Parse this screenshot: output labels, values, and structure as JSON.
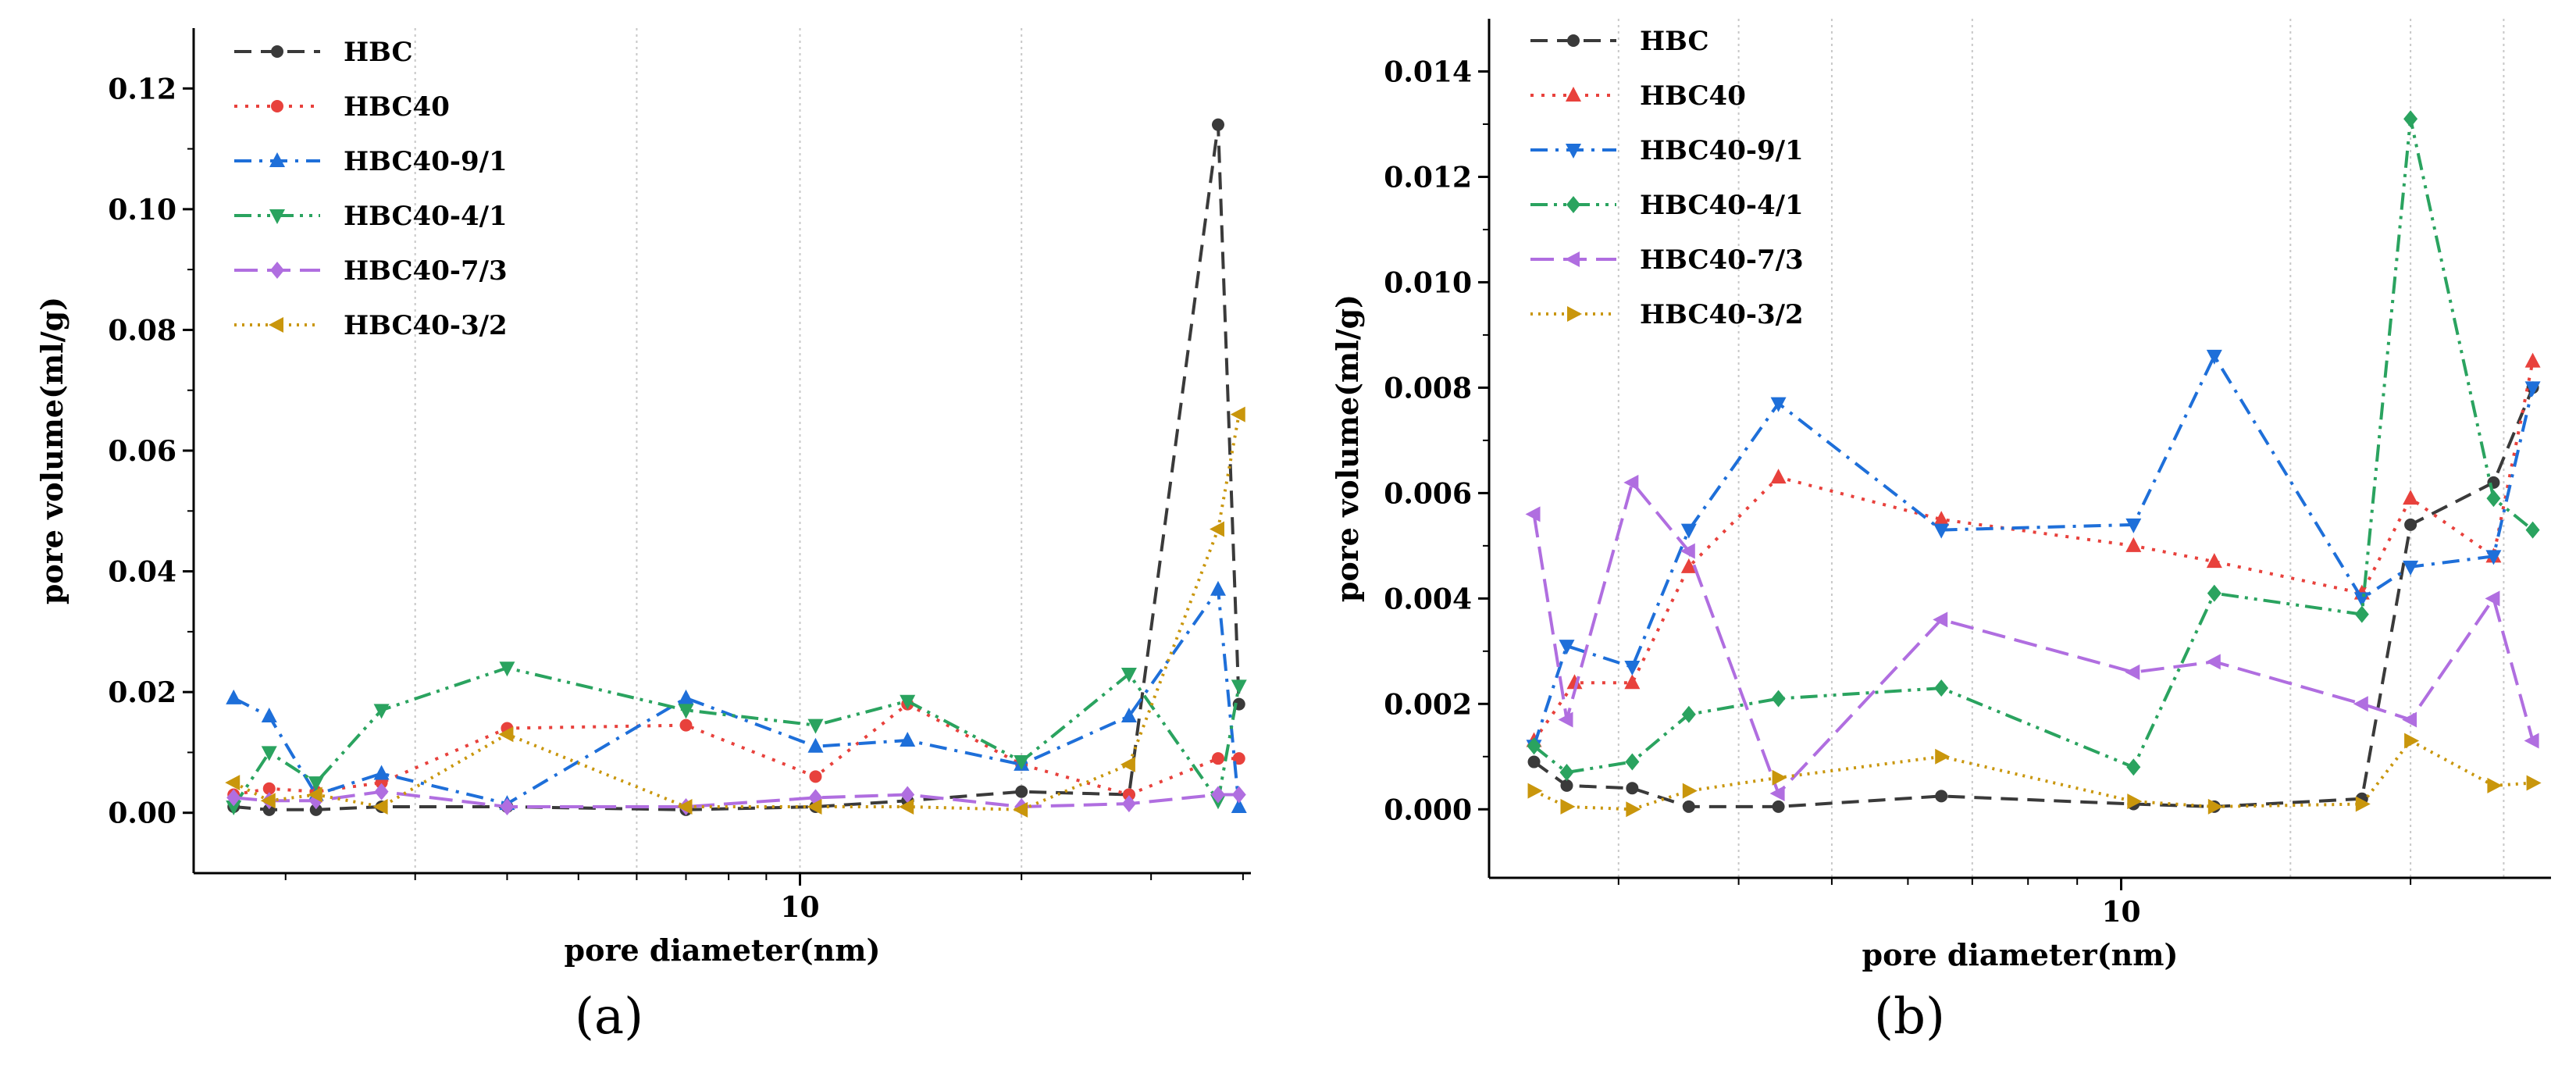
{
  "figure": {
    "panels": [
      "(a)",
      "(b)"
    ]
  },
  "colors": {
    "HBC": "#3a3a3a",
    "HBC40": "#e8413c",
    "HBC40-9/1": "#1e6fd9",
    "HBC40-4/1": "#2aa35f",
    "HBC40-7/3": "#b06ee0",
    "HBC40-3/2": "#c9960c"
  },
  "chart_data": [
    {
      "type": "line",
      "panel": "(a)",
      "xlabel": "pore diameter(nm)",
      "ylabel": "pore volume(ml/g)",
      "xscale": "log",
      "xlim": [
        1.5,
        41
      ],
      "ylim": [
        -0.01,
        0.13
      ],
      "xticks": [
        {
          "value": 10,
          "label": "10"
        }
      ],
      "xgrid": [
        3,
        6,
        10,
        20
      ],
      "yticks": [
        0.0,
        0.02,
        0.04,
        0.06,
        0.08,
        0.1,
        0.12
      ],
      "ytick_labels": [
        "0.00",
        "0.02",
        "0.04",
        "0.06",
        "0.08",
        "0.10",
        "0.12"
      ],
      "legend": "top-left",
      "series": [
        {
          "name": "HBC",
          "marker": "circle",
          "dash": "dash",
          "x": [
            1.7,
            1.9,
            2.2,
            2.7,
            4.0,
            7.0,
            10.5,
            14.0,
            20.0,
            28.0,
            37.0,
            39.5
          ],
          "y": [
            0.001,
            0.0005,
            0.0005,
            0.001,
            0.001,
            0.0005,
            0.001,
            0.002,
            0.0035,
            0.003,
            0.114,
            0.018
          ]
        },
        {
          "name": "HBC40",
          "marker": "circle",
          "dash": "dot",
          "x": [
            1.7,
            1.9,
            2.2,
            2.7,
            4.0,
            7.0,
            10.5,
            14.0,
            20.0,
            28.0,
            37.0,
            39.5
          ],
          "y": [
            0.003,
            0.004,
            0.0035,
            0.005,
            0.014,
            0.0145,
            0.006,
            0.018,
            0.008,
            0.003,
            0.009,
            0.009
          ]
        },
        {
          "name": "HBC40-9/1",
          "marker": "triangle-up",
          "dash": "dashdot",
          "x": [
            1.7,
            1.9,
            2.2,
            2.7,
            4.0,
            7.0,
            10.5,
            14.0,
            20.0,
            28.0,
            37.0,
            39.5
          ],
          "y": [
            0.019,
            0.016,
            0.003,
            0.0065,
            0.0015,
            0.019,
            0.011,
            0.012,
            0.008,
            0.016,
            0.037,
            0.001
          ]
        },
        {
          "name": "HBC40-4/1",
          "marker": "triangle-down",
          "dash": "dashdotdot",
          "x": [
            1.7,
            1.9,
            2.2,
            2.7,
            4.0,
            7.0,
            10.5,
            14.0,
            20.0,
            28.0,
            37.0,
            39.5
          ],
          "y": [
            0.001,
            0.01,
            0.005,
            0.017,
            0.024,
            0.017,
            0.0145,
            0.0185,
            0.0085,
            0.023,
            0.002,
            0.021
          ]
        },
        {
          "name": "HBC40-7/3",
          "marker": "diamond",
          "dash": "longdash",
          "x": [
            1.7,
            1.9,
            2.2,
            2.7,
            4.0,
            7.0,
            10.5,
            14.0,
            20.0,
            28.0,
            37.0,
            39.5
          ],
          "y": [
            0.0025,
            0.002,
            0.002,
            0.0035,
            0.001,
            0.001,
            0.0025,
            0.003,
            0.001,
            0.0015,
            0.003,
            0.003
          ]
        },
        {
          "name": "HBC40-3/2",
          "marker": "triangle-left",
          "dash": "shortdot",
          "x": [
            1.7,
            1.9,
            2.2,
            2.7,
            4.0,
            7.0,
            10.5,
            14.0,
            20.0,
            28.0,
            37.0,
            39.5
          ],
          "y": [
            0.005,
            0.002,
            0.003,
            0.001,
            0.013,
            0.001,
            0.001,
            0.001,
            0.0005,
            0.008,
            0.047,
            0.066
          ]
        }
      ]
    },
    {
      "type": "line",
      "panel": "(b)",
      "xlabel": "pore diameter(nm)",
      "ylabel": "pore volume(ml/g)",
      "xscale": "log",
      "xlim": [
        2.2,
        28
      ],
      "ylim": [
        -0.0013,
        0.015
      ],
      "xticks": [
        {
          "value": 10,
          "label": "10"
        }
      ],
      "xgrid": [
        3,
        4,
        5,
        7,
        15,
        20,
        25
      ],
      "yticks": [
        0.0,
        0.002,
        0.004,
        0.006,
        0.008,
        0.01,
        0.012,
        0.014
      ],
      "ytick_labels": [
        "0.000",
        "0.002",
        "0.004",
        "0.006",
        "0.008",
        "0.010",
        "0.012",
        "0.014"
      ],
      "legend": "top-left",
      "series": [
        {
          "name": "HBC",
          "marker": "circle",
          "dash": "dash",
          "x": [
            2.45,
            2.65,
            3.1,
            3.55,
            4.4,
            6.5,
            10.3,
            12.5,
            17.8,
            20.0,
            24.4,
            26.8
          ],
          "y": [
            0.0009,
            0.00045,
            0.0004,
            5e-05,
            5e-05,
            0.00025,
            0.0001,
            5e-05,
            0.0002,
            0.0054,
            0.0062,
            0.008
          ]
        },
        {
          "name": "HBC40",
          "marker": "triangle-up",
          "dash": "dot",
          "x": [
            2.45,
            2.7,
            3.1,
            3.55,
            4.4,
            6.5,
            10.3,
            12.5,
            17.8,
            20.0,
            24.4,
            26.8
          ],
          "y": [
            0.0013,
            0.0024,
            0.0024,
            0.0046,
            0.0063,
            0.0055,
            0.005,
            0.0047,
            0.0041,
            0.0059,
            0.0048,
            0.0085
          ]
        },
        {
          "name": "HBC40-9/1",
          "marker": "triangle-down",
          "dash": "dashdot",
          "x": [
            2.45,
            2.65,
            3.1,
            3.55,
            4.4,
            6.5,
            10.3,
            12.5,
            17.8,
            20.0,
            24.4,
            26.8
          ],
          "y": [
            0.0012,
            0.0031,
            0.0027,
            0.0053,
            0.0077,
            0.0053,
            0.0054,
            0.0086,
            0.004,
            0.0046,
            0.0048,
            0.008
          ]
        },
        {
          "name": "HBC40-4/1",
          "marker": "diamond",
          "dash": "dashdotdot",
          "x": [
            2.45,
            2.65,
            3.1,
            3.55,
            4.4,
            6.5,
            10.3,
            12.5,
            17.8,
            20.0,
            24.4,
            26.8
          ],
          "y": [
            0.0012,
            0.0007,
            0.0009,
            0.0018,
            0.0021,
            0.0023,
            0.0008,
            0.0041,
            0.0037,
            0.0131,
            0.0059,
            0.0053
          ]
        },
        {
          "name": "HBC40-7/3",
          "marker": "triangle-left",
          "dash": "longdash",
          "x": [
            2.45,
            2.65,
            3.1,
            3.55,
            4.4,
            6.5,
            10.3,
            12.5,
            17.8,
            20.0,
            24.4,
            26.8
          ],
          "y": [
            0.0056,
            0.0017,
            0.0062,
            0.0049,
            0.0003,
            0.0036,
            0.0026,
            0.0028,
            0.002,
            0.0017,
            0.004,
            0.0013
          ]
        },
        {
          "name": "HBC40-3/2",
          "marker": "triangle-right",
          "dash": "shortdot",
          "x": [
            2.45,
            2.65,
            3.1,
            3.55,
            4.4,
            6.5,
            10.3,
            12.5,
            17.8,
            20.0,
            24.4,
            26.8
          ],
          "y": [
            0.00035,
            5e-05,
            0.0,
            0.00035,
            0.0006,
            0.001,
            0.00015,
            5e-05,
            0.0001,
            0.0013,
            0.00045,
            0.0005
          ]
        }
      ]
    }
  ]
}
